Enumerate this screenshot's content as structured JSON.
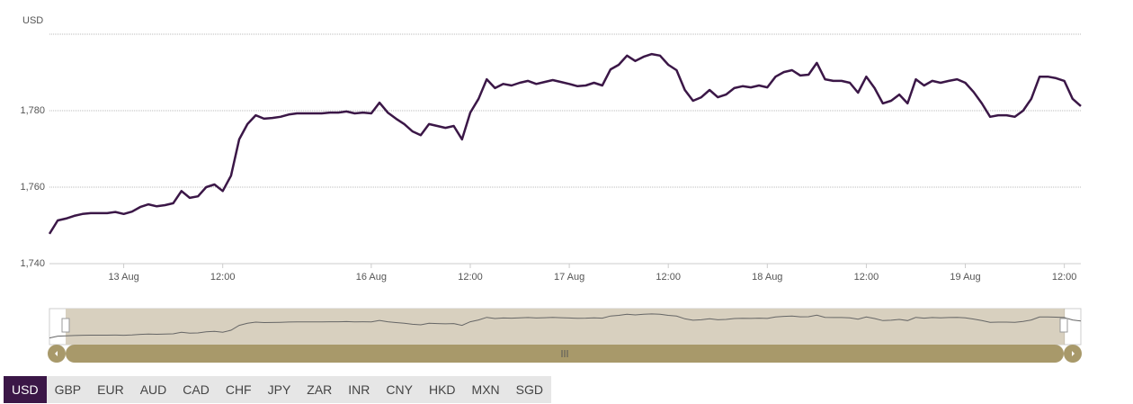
{
  "chart_data": {
    "type": "line",
    "ylabel": "USD",
    "categories": [
      null,
      null,
      null,
      null,
      null,
      null,
      null,
      null,
      null,
      "13 Aug",
      null,
      null,
      null,
      null,
      null,
      null,
      null,
      null,
      null,
      null,
      null,
      "12:00",
      null,
      null,
      null,
      null,
      null,
      null,
      null,
      null,
      null,
      null,
      null,
      null,
      null,
      null,
      null,
      null,
      null,
      "16 Aug",
      null,
      null,
      null,
      null,
      null,
      null,
      null,
      null,
      null,
      null,
      null,
      "12:00",
      null,
      null,
      null,
      null,
      null,
      null,
      null,
      null,
      null,
      null,
      null,
      "17 Aug",
      null,
      null,
      null,
      null,
      null,
      null,
      null,
      null,
      null,
      null,
      null,
      "12:00",
      null,
      null,
      null,
      null,
      null,
      null,
      null,
      null,
      null,
      null,
      null,
      "18 Aug",
      null,
      null,
      null,
      null,
      null,
      null,
      null,
      null,
      null,
      null,
      null,
      "12:00",
      null,
      null,
      null,
      null,
      null,
      null,
      null,
      null,
      null,
      null,
      null,
      "19 Aug",
      null,
      null,
      null,
      null,
      null,
      null,
      null,
      null,
      null,
      null,
      null,
      "12:00",
      null,
      null
    ],
    "series": [
      {
        "name": "USD",
        "color": "#3b1747",
        "values": [
          1747.8,
          1751.3,
          1751.8,
          1752.5,
          1753,
          1753.2,
          1753.2,
          1753.2,
          1753.5,
          1753,
          1753.6,
          1754.8,
          1755.5,
          1755,
          1755.3,
          1755.8,
          1759,
          1757.2,
          1757.6,
          1760,
          1760.7,
          1759,
          1763,
          1772.5,
          1776.5,
          1778.8,
          1777.9,
          1778.1,
          1778.4,
          1779,
          1779.3,
          1779.3,
          1779.3,
          1779.3,
          1779.5,
          1779.5,
          1779.8,
          1779.3,
          1779.5,
          1779.3,
          1782.1,
          1779.5,
          1777.9,
          1776.5,
          1774.6,
          1773.6,
          1776.5,
          1776,
          1775.5,
          1776,
          1772.5,
          1779.5,
          1783.1,
          1788.2,
          1785.9,
          1787,
          1786.6,
          1787.3,
          1787.8,
          1787,
          1787.5,
          1788,
          1787.5,
          1787,
          1786.4,
          1786.6,
          1787.3,
          1786.6,
          1790.8,
          1792,
          1794.4,
          1793,
          1794.1,
          1794.8,
          1794.4,
          1792,
          1790.6,
          1785.4,
          1782.6,
          1783.5,
          1785.4,
          1783.5,
          1784.2,
          1785.9,
          1786.4,
          1786.1,
          1786.6,
          1786.1,
          1788.9,
          1790.1,
          1790.6,
          1789.2,
          1789.4,
          1792.5,
          1788.2,
          1787.8,
          1787.8,
          1787.3,
          1784.7,
          1788.9,
          1785.9,
          1781.9,
          1782.6,
          1784.2,
          1781.9,
          1788.2,
          1786.6,
          1787.8,
          1787.3,
          1787.8,
          1788.2,
          1787.3,
          1784.9,
          1781.9,
          1778.4,
          1778.8,
          1778.8,
          1778.4,
          1780,
          1783.1,
          1788.9,
          1788.9,
          1788.5,
          1787.8,
          1783.1,
          1781.2
        ]
      }
    ],
    "ylim": [
      1740,
      1800
    ],
    "yticks": [
      {
        "value": 1740,
        "label": "1,740"
      },
      {
        "value": 1760,
        "label": "1,760"
      },
      {
        "value": 1780,
        "label": "1,780"
      }
    ],
    "grid": true
  },
  "currencies": [
    "USD",
    "GBP",
    "EUR",
    "AUD",
    "CAD",
    "CHF",
    "JPY",
    "ZAR",
    "INR",
    "CNY",
    "HKD",
    "MXN",
    "SGD"
  ],
  "active_currency": 0
}
